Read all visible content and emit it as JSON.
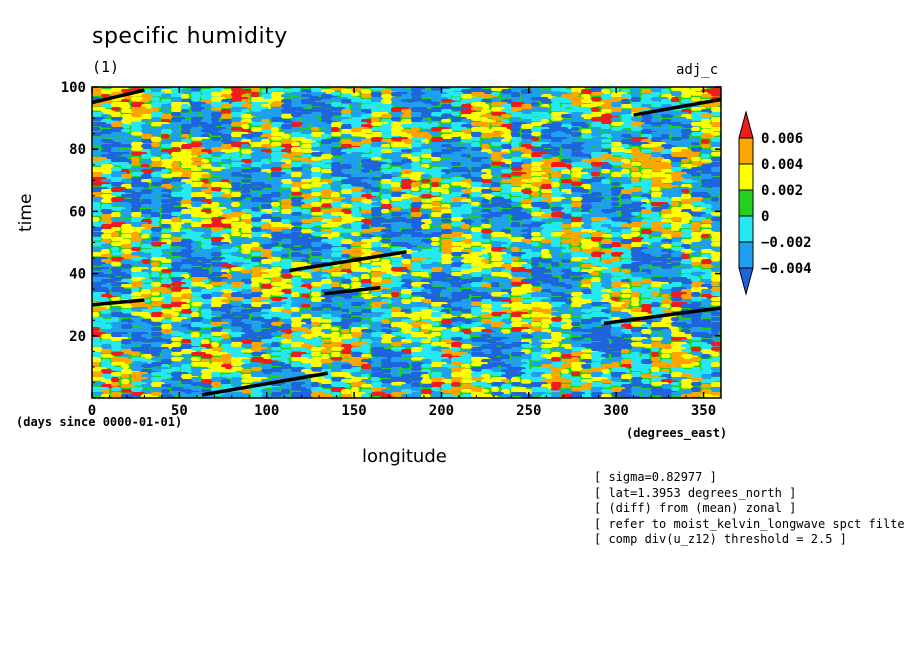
{
  "chart_data": {
    "type": "heatmap",
    "title": "specific humidity",
    "subtitle": "(1)",
    "corner_label": "adj_c",
    "xlabel": "longitude",
    "ylabel": "time",
    "x_units": "(degrees_east)",
    "y_units": "(days since 0000-01-01)",
    "xlim": [
      0,
      360
    ],
    "ylim": [
      0,
      100
    ],
    "x_ticks": [
      "0",
      "50",
      "100",
      "150",
      "200",
      "250",
      "300",
      "350"
    ],
    "y_ticks": [
      "20",
      "40",
      "60",
      "80",
      "100"
    ],
    "colorbar": {
      "levels": [
        -0.006,
        -0.004,
        -0.002,
        0,
        0.002,
        0.004,
        0.006
      ],
      "tick_labels": [
        "0.006",
        "0.004",
        "0.002",
        "0",
        "-0.002",
        "-0.004"
      ],
      "colors": [
        "#1e64dc",
        "#1f9ff0",
        "#26e8f4",
        "#20d21c",
        "#ffff00",
        "#ffa500",
        "#ee1c1c"
      ]
    },
    "filter_tracks": [
      {
        "x": [
          0,
          30
        ],
        "y": [
          95,
          99
        ]
      },
      {
        "x": [
          310,
          360
        ],
        "y": [
          91,
          96
        ]
      },
      {
        "x": [
          113,
          180
        ],
        "y": [
          41,
          47
        ]
      },
      {
        "x": [
          133,
          165
        ],
        "y": [
          33.5,
          35.5
        ]
      },
      {
        "x": [
          0,
          30
        ],
        "y": [
          30,
          31.5
        ]
      },
      {
        "x": [
          293,
          360
        ],
        "y": [
          24,
          29
        ]
      },
      {
        "x": [
          63,
          135
        ],
        "y": [
          1,
          8
        ]
      }
    ],
    "notes": [
      "[ sigma=0.82977 ]",
      "[ lat=1.3953 degrees_north ]",
      "[ (diff) from (mean) zonal ]",
      "[ refer to moist_kelvin_longwave spct filter",
      "[ comp div(u_z12) threshold = 2.5 ]"
    ]
  }
}
